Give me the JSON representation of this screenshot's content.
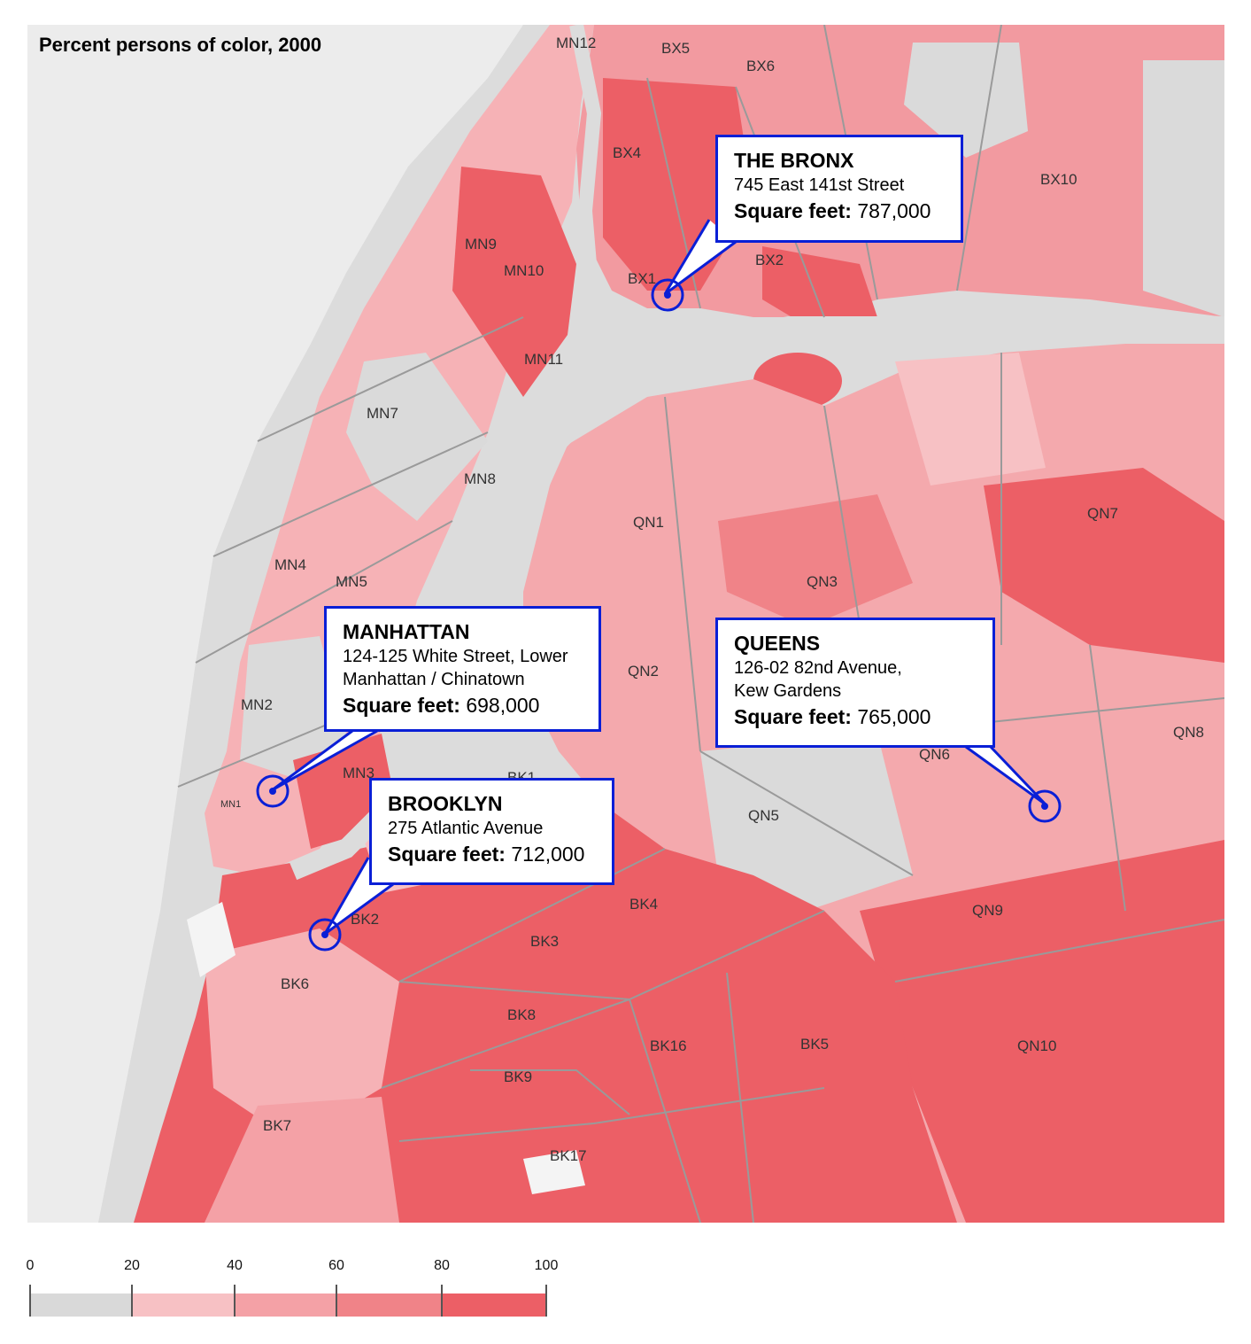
{
  "map": {
    "title": "Percent persons of color, 2000",
    "district_labels": [
      "MN12",
      "BX5",
      "BX6",
      "BX4",
      "BX10",
      "MN9",
      "MN10",
      "BX1",
      "BX2",
      "MN11",
      "MN7",
      "MN8",
      "QN1",
      "QN7",
      "MN4",
      "MN5",
      "QN3",
      "MN2",
      "QN2",
      "QN8",
      "QN6",
      "MN3",
      "MN1",
      "BK1",
      "QN5",
      "BK4",
      "BK2",
      "QN9",
      "BK3",
      "BK6",
      "BK8",
      "BK16",
      "BK5",
      "QN10",
      "BK9",
      "BK7",
      "BK17"
    ]
  },
  "callouts": {
    "bronx": {
      "title": "THE BRONX",
      "address": "745 East 141st Street",
      "sqft_label": "Square feet:",
      "sqft_value": "787,000"
    },
    "manhattan": {
      "title": "MANHATTAN",
      "address_line1": "124-125 White Street, Lower",
      "address_line2": "Manhattan / Chinatown",
      "sqft_label": "Square feet:",
      "sqft_value": "698,000"
    },
    "queens": {
      "title": "QUEENS",
      "address_line1": "126-02 82nd Avenue,",
      "address_line2": "Kew Gardens",
      "sqft_label": "Square feet:",
      "sqft_value": "765,000"
    },
    "brooklyn": {
      "title": "BROOKLYN",
      "address": "275 Atlantic Avenue",
      "sqft_label": "Square feet:",
      "sqft_value": "712,000"
    }
  },
  "legend": {
    "ticks": [
      "0",
      "20",
      "40",
      "60",
      "80",
      "100"
    ],
    "colors": [
      "#d9d9d9",
      "#f7c1c4",
      "#f4a1a6",
      "#f08388",
      "#ec5f66"
    ]
  },
  "colors": {
    "water": "#dcdcdc",
    "land": "#ececec",
    "callout_border": "#0a1fd6",
    "boundary": "#9a9a9a"
  }
}
